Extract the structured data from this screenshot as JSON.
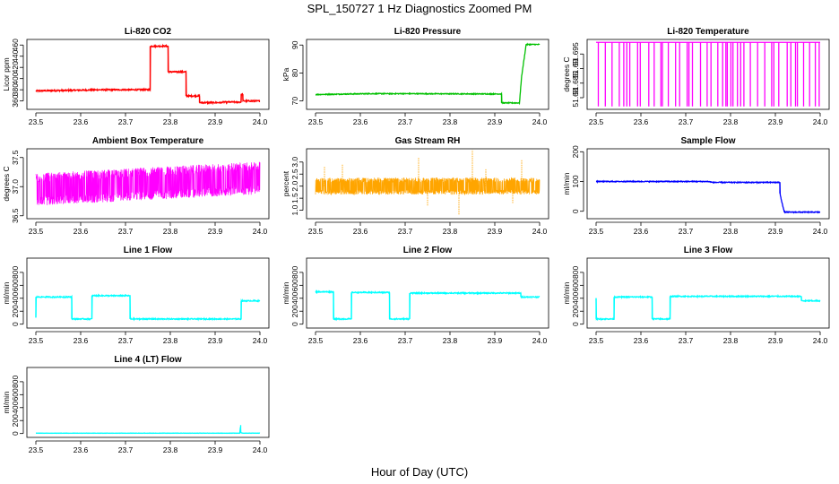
{
  "figure": {
    "title": "SPL_150727  1 Hz Diagnostics Zoomed PM",
    "xlabel": "Hour of Day (UTC)"
  },
  "chart_data": [
    {
      "id": "co2",
      "type": "line",
      "title": "Li-820 CO2",
      "ylabel": "Licor ppm",
      "color": "#ff0000",
      "xlim": [
        23.48,
        24.02
      ],
      "ylim": [
        345,
        470
      ],
      "xticks": [
        "23.5",
        "23.6",
        "23.7",
        "23.8",
        "23.9",
        "24.0"
      ],
      "yticks": [
        360,
        380,
        400,
        420,
        440,
        460
      ],
      "noise": 1.2,
      "series": [
        {
          "name": "Li-820 CO2",
          "x": [
            23.5,
            23.65,
            23.755,
            23.755,
            23.795,
            23.795,
            23.835,
            23.835,
            23.865,
            23.865,
            23.915,
            23.915,
            23.958,
            23.958,
            23.962,
            23.962,
            24.0
          ],
          "y": [
            378,
            380,
            380,
            458,
            458,
            412,
            412,
            369,
            369,
            357,
            357,
            358,
            358,
            372,
            372,
            360,
            360
          ]
        }
      ]
    },
    {
      "id": "pressure",
      "type": "line",
      "title": "Li-820 Pressure",
      "ylabel": "kPa",
      "color": "#00c000",
      "xlim": [
        23.48,
        24.02
      ],
      "ylim": [
        67,
        92
      ],
      "xticks": [
        "23.5",
        "23.6",
        "23.7",
        "23.8",
        "23.9",
        "24.0"
      ],
      "yticks": [
        70,
        80,
        90
      ],
      "noise": 0.15,
      "series": [
        {
          "name": "Li-820 Pressure",
          "x": [
            23.5,
            23.62,
            23.7,
            23.915,
            23.915,
            23.955,
            23.96,
            23.97,
            24.0
          ],
          "y": [
            72.3,
            72.6,
            72.6,
            72.5,
            69.3,
            69.3,
            79,
            90.2,
            90.2
          ]
        }
      ]
    },
    {
      "id": "licor_temp",
      "type": "line",
      "title": "Li-820 Temperature",
      "ylabel": "degrees C",
      "color": "#ff00ff",
      "xlim": [
        23.48,
        24.02
      ],
      "ylim": [
        51.676,
        51.7
      ],
      "xticks": [
        "23.5",
        "23.6",
        "23.7",
        "23.8",
        "23.9",
        "24.0"
      ],
      "yticks": [
        51.68,
        51.685,
        51.69,
        51.695
      ],
      "dips_low": 51.677,
      "series": [
        {
          "name": "Li-820 Temperature",
          "x": [
            23.5,
            24.0
          ],
          "y": [
            51.699,
            51.699
          ]
        }
      ]
    },
    {
      "id": "ambient_box_temp",
      "type": "line",
      "title": "Ambient Box Temperature",
      "ylabel": "degrees C",
      "color": "#ff00ff",
      "xlim": [
        23.48,
        24.02
      ],
      "ylim": [
        36.45,
        37.65
      ],
      "xticks": [
        "23.5",
        "23.6",
        "23.7",
        "23.8",
        "23.9",
        "24.0"
      ],
      "yticks": [
        36.5,
        37.0,
        37.5
      ],
      "ytick_labels": [
        "36.5",
        "37.0",
        "37.5"
      ],
      "band_center": [
        36.95,
        37.15
      ],
      "band_half": 0.28,
      "series": [
        {
          "name": "Ambient Box Temperature",
          "x": [
            23.5,
            24.0
          ],
          "y": [
            36.95,
            37.15
          ]
        }
      ]
    },
    {
      "id": "gas_rh",
      "type": "line",
      "title": "Gas Stream RH",
      "ylabel": "percent",
      "color": "#ffa500",
      "xlim": [
        23.48,
        24.02
      ],
      "ylim": [
        0.65,
        3.55
      ],
      "xticks": [
        "23.5",
        "23.6",
        "23.7",
        "23.8",
        "23.9",
        "24.0"
      ],
      "yticks": [
        1.0,
        1.5,
        2.0,
        2.5,
        3.0
      ],
      "ytick_labels": [
        "1.0",
        "1.5",
        "2.0",
        "2.5",
        "3.0"
      ],
      "band_center": [
        2.0,
        2.0
      ],
      "band_half": 0.35,
      "spikes": [
        {
          "x": 23.52,
          "y": 2.8
        },
        {
          "x": 23.56,
          "y": 2.9
        },
        {
          "x": 23.73,
          "y": 3.2
        },
        {
          "x": 23.85,
          "y": 3.5
        },
        {
          "x": 23.88,
          "y": 2.7
        },
        {
          "x": 23.96,
          "y": 3.1
        }
      ],
      "dips": [
        {
          "x": 23.82,
          "y": 0.8
        },
        {
          "x": 23.75,
          "y": 1.2
        },
        {
          "x": 23.94,
          "y": 1.3
        }
      ],
      "series": [
        {
          "name": "Gas Stream RH",
          "x": [
            23.5,
            24.0
          ],
          "y": [
            2.0,
            2.0
          ]
        }
      ]
    },
    {
      "id": "sample_flow",
      "type": "line",
      "title": "Sample Flow",
      "ylabel": "ml/min",
      "color": "#0000ff",
      "xlim": [
        23.48,
        24.02
      ],
      "ylim": [
        -25,
        210
      ],
      "xticks": [
        "23.5",
        "23.6",
        "23.7",
        "23.8",
        "23.9",
        "24.0"
      ],
      "yticks": [
        0,
        100,
        200
      ],
      "noise": 1.5,
      "series": [
        {
          "name": "Sample Flow",
          "x": [
            23.5,
            23.75,
            23.76,
            23.91,
            23.91,
            23.92,
            24.0
          ],
          "y": [
            100,
            100,
            97,
            97,
            60,
            -3,
            -3
          ]
        }
      ]
    },
    {
      "id": "line1",
      "type": "line",
      "title": "Line 1 Flow",
      "ylabel": "ml/min",
      "color": "#00ffff",
      "xlim": [
        23.48,
        24.02
      ],
      "ylim": [
        -60,
        1020
      ],
      "xticks": [
        "23.5",
        "23.6",
        "23.7",
        "23.8",
        "23.9",
        "24.0"
      ],
      "yticks": [
        0,
        200,
        400,
        600,
        800
      ],
      "noise": 8,
      "series": [
        {
          "name": "Line 1 Flow",
          "x": [
            23.5,
            23.5,
            23.58,
            23.58,
            23.625,
            23.625,
            23.71,
            23.71,
            23.958,
            23.958,
            24.0
          ],
          "y": [
            100,
            420,
            420,
            80,
            80,
            440,
            440,
            80,
            80,
            360,
            360
          ]
        }
      ]
    },
    {
      "id": "line2",
      "type": "line",
      "title": "Line 2 Flow",
      "ylabel": "ml/min",
      "color": "#00ffff",
      "xlim": [
        23.48,
        24.02
      ],
      "ylim": [
        -60,
        1020
      ],
      "xticks": [
        "23.5",
        "23.6",
        "23.7",
        "23.8",
        "23.9",
        "24.0"
      ],
      "yticks": [
        0,
        200,
        400,
        600,
        800
      ],
      "noise": 8,
      "series": [
        {
          "name": "Line 2 Flow",
          "x": [
            23.5,
            23.54,
            23.54,
            23.58,
            23.58,
            23.665,
            23.665,
            23.71,
            23.71,
            23.958,
            23.958,
            24.0
          ],
          "y": [
            500,
            500,
            80,
            80,
            490,
            490,
            80,
            80,
            480,
            480,
            420,
            420
          ]
        }
      ]
    },
    {
      "id": "line3",
      "type": "line",
      "title": "Line 3 Flow",
      "ylabel": "ml/min",
      "color": "#00ffff",
      "xlim": [
        23.48,
        24.02
      ],
      "ylim": [
        -60,
        1020
      ],
      "xticks": [
        "23.5",
        "23.6",
        "23.7",
        "23.8",
        "23.9",
        "24.0"
      ],
      "yticks": [
        0,
        200,
        400,
        600,
        800
      ],
      "noise": 8,
      "series": [
        {
          "name": "Line 3 Flow",
          "x": [
            23.5,
            23.5,
            23.54,
            23.54,
            23.625,
            23.625,
            23.665,
            23.665,
            23.958,
            23.958,
            24.0
          ],
          "y": [
            400,
            80,
            80,
            420,
            420,
            80,
            80,
            430,
            430,
            360,
            360
          ]
        }
      ]
    },
    {
      "id": "line4",
      "type": "line",
      "title": "Line 4 (LT) Flow",
      "ylabel": "ml/min",
      "color": "#00ffff",
      "xlim": [
        23.48,
        24.02
      ],
      "ylim": [
        -60,
        1020
      ],
      "xticks": [
        "23.5",
        "23.6",
        "23.7",
        "23.8",
        "23.9",
        "24.0"
      ],
      "yticks": [
        0,
        200,
        400,
        600,
        800
      ],
      "noise": 2,
      "series": [
        {
          "name": "Line 4 (LT) Flow",
          "x": [
            23.5,
            23.955,
            23.955,
            23.957,
            23.957,
            23.96,
            23.96,
            24.0
          ],
          "y": [
            5,
            5,
            20,
            130,
            20,
            5,
            5,
            5
          ]
        }
      ]
    }
  ]
}
